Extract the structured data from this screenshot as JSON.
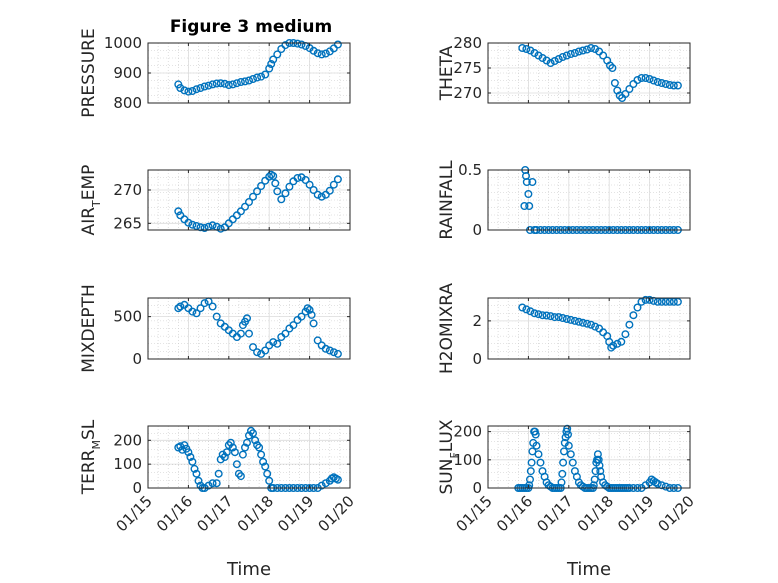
{
  "title": "Figure 3 medium",
  "chart_data": [
    {
      "type": "scatter",
      "ylabel": "PRESSURE",
      "ylim": [
        800,
        1000
      ],
      "yticks": [
        800,
        900,
        1000
      ],
      "yticklabels": [
        "800",
        "900",
        "1000"
      ],
      "x": [
        15.75,
        15.8,
        15.9,
        16.0,
        16.1,
        16.2,
        16.3,
        16.4,
        16.5,
        16.6,
        16.7,
        16.8,
        16.9,
        17.0,
        17.1,
        17.2,
        17.3,
        17.4,
        17.5,
        17.6,
        17.7,
        17.8,
        17.9,
        18.0,
        18.05,
        18.1,
        18.2,
        18.3,
        18.4,
        18.5,
        18.6,
        18.7,
        18.8,
        18.9,
        19.0,
        19.1,
        19.2,
        19.3,
        19.4,
        19.5,
        19.6,
        19.7
      ],
      "y": [
        862,
        850,
        842,
        838,
        840,
        846,
        850,
        855,
        858,
        862,
        865,
        866,
        864,
        860,
        862,
        866,
        870,
        872,
        875,
        880,
        885,
        888,
        895,
        915,
        930,
        945,
        962,
        980,
        993,
        1000,
        1000,
        998,
        995,
        990,
        983,
        974,
        966,
        962,
        965,
        972,
        982,
        995
      ]
    },
    {
      "type": "scatter",
      "ylabel": "THETA",
      "ylim": [
        268,
        280
      ],
      "yticks": [
        270,
        275,
        280
      ],
      "yticklabels": [
        "270",
        "275",
        "280"
      ],
      "x": [
        15.85,
        15.95,
        16.05,
        16.15,
        16.25,
        16.35,
        16.45,
        16.55,
        16.65,
        16.75,
        16.85,
        16.95,
        17.05,
        17.15,
        17.25,
        17.35,
        17.45,
        17.55,
        17.65,
        17.75,
        17.85,
        17.95,
        18.02,
        18.08,
        18.14,
        18.2,
        18.26,
        18.32,
        18.4,
        18.5,
        18.6,
        18.7,
        18.8,
        18.9,
        19.0,
        19.1,
        19.2,
        19.3,
        19.4,
        19.5,
        19.6,
        19.7
      ],
      "y": [
        279,
        278.8,
        278.5,
        278,
        277.5,
        277,
        276.5,
        276,
        276.4,
        276.8,
        277.2,
        277.5,
        277.8,
        278,
        278.3,
        278.5,
        278.7,
        279,
        278.8,
        278.3,
        277.5,
        276.5,
        275.5,
        275,
        272,
        270.5,
        269.5,
        269,
        269.8,
        270.8,
        271.8,
        272.6,
        273,
        273,
        272.8,
        272.5,
        272.2,
        272,
        271.8,
        271.6,
        271.5,
        271.5
      ]
    },
    {
      "type": "scatter",
      "ylabel": "AIR_TEMP",
      "ylim": [
        264,
        273
      ],
      "yticks": [
        265,
        270
      ],
      "yticklabels": [
        "265",
        "270"
      ],
      "x": [
        15.75,
        15.8,
        15.9,
        16.0,
        16.1,
        16.2,
        16.3,
        16.4,
        16.5,
        16.6,
        16.7,
        16.8,
        16.9,
        17.0,
        17.1,
        17.2,
        17.3,
        17.4,
        17.5,
        17.6,
        17.7,
        17.8,
        17.9,
        18.0,
        18.05,
        18.1,
        18.15,
        18.2,
        18.3,
        18.4,
        18.5,
        18.6,
        18.7,
        18.8,
        18.9,
        19.0,
        19.1,
        19.2,
        19.3,
        19.4,
        19.5,
        19.6,
        19.7
      ],
      "y": [
        266.8,
        266.2,
        265.6,
        265.1,
        264.8,
        264.6,
        264.4,
        264.3,
        264.5,
        264.7,
        264.5,
        264.2,
        264.4,
        265,
        265.6,
        266.2,
        266.8,
        267.5,
        268.2,
        269,
        269.8,
        270.6,
        271.4,
        272,
        272.3,
        272.1,
        271,
        269.8,
        268.6,
        269.5,
        270.5,
        271.3,
        271.8,
        271.9,
        271.5,
        270.8,
        270,
        269.3,
        269,
        269.3,
        269.9,
        270.8,
        271.6
      ]
    },
    {
      "type": "scatter",
      "ylabel": "RAINFALL",
      "ylim": [
        0,
        0.5
      ],
      "yticks": [
        0,
        0.5
      ],
      "yticklabels": [
        "0",
        "0.5"
      ],
      "x": [
        15.9,
        15.92,
        15.94,
        15.96,
        16.0,
        16.02,
        16.04,
        16.1,
        16.15,
        16.2,
        16.3,
        16.4,
        16.5,
        16.6,
        16.7,
        16.8,
        16.9,
        17.0,
        17.1,
        17.2,
        17.3,
        17.4,
        17.5,
        17.6,
        17.7,
        17.8,
        17.9,
        18.0,
        18.1,
        18.2,
        18.3,
        18.4,
        18.5,
        18.6,
        18.7,
        18.8,
        18.9,
        19.0,
        19.1,
        19.2,
        19.3,
        19.4,
        19.5,
        19.6,
        19.7
      ],
      "y": [
        0.2,
        0.5,
        0.45,
        0.4,
        0.3,
        0.2,
        0.0,
        0.4,
        0.0,
        0.0,
        0,
        0,
        0,
        0,
        0,
        0,
        0,
        0,
        0,
        0,
        0,
        0,
        0,
        0,
        0,
        0,
        0,
        0,
        0,
        0,
        0,
        0,
        0,
        0,
        0,
        0,
        0,
        0,
        0,
        0,
        0,
        0,
        0,
        0,
        0
      ]
    },
    {
      "type": "scatter",
      "ylabel": "MIXDEPTH",
      "ylim": [
        0,
        720
      ],
      "yticks": [
        0,
        500
      ],
      "yticklabels": [
        "0",
        "500"
      ],
      "x": [
        15.75,
        15.8,
        15.9,
        16.0,
        16.1,
        16.2,
        16.3,
        16.4,
        16.5,
        16.6,
        16.7,
        16.8,
        16.9,
        17.0,
        17.1,
        17.2,
        17.3,
        17.35,
        17.4,
        17.45,
        17.5,
        17.6,
        17.7,
        17.8,
        17.9,
        18.0,
        18.1,
        18.2,
        18.3,
        18.4,
        18.5,
        18.6,
        18.7,
        18.8,
        18.9,
        18.95,
        19.0,
        19.05,
        19.1,
        19.2,
        19.3,
        19.4,
        19.5,
        19.6,
        19.7
      ],
      "y": [
        600,
        620,
        640,
        600,
        560,
        540,
        600,
        660,
        680,
        620,
        500,
        420,
        380,
        340,
        300,
        260,
        300,
        400,
        440,
        480,
        300,
        140,
        80,
        60,
        100,
        160,
        200,
        180,
        260,
        300,
        360,
        400,
        460,
        500,
        560,
        600,
        580,
        520,
        420,
        220,
        160,
        120,
        100,
        80,
        60
      ]
    },
    {
      "type": "scatter",
      "ylabel": "H2OMIXRA",
      "ylim": [
        0,
        3.2
      ],
      "yticks": [
        0,
        2
      ],
      "yticklabels": [
        "0",
        "2"
      ],
      "x": [
        15.85,
        15.95,
        16.05,
        16.15,
        16.25,
        16.35,
        16.45,
        16.55,
        16.65,
        16.75,
        16.85,
        16.95,
        17.05,
        17.15,
        17.25,
        17.35,
        17.45,
        17.55,
        17.65,
        17.75,
        17.85,
        17.95,
        18.0,
        18.05,
        18.1,
        18.2,
        18.3,
        18.4,
        18.5,
        18.6,
        18.7,
        18.8,
        18.9,
        19.0,
        19.1,
        19.2,
        19.3,
        19.4,
        19.5,
        19.6,
        19.7
      ],
      "y": [
        2.7,
        2.6,
        2.5,
        2.4,
        2.35,
        2.3,
        2.28,
        2.25,
        2.2,
        2.2,
        2.15,
        2.1,
        2.05,
        2.0,
        1.95,
        1.9,
        1.85,
        1.8,
        1.7,
        1.6,
        1.4,
        1.2,
        0.9,
        0.6,
        0.7,
        0.8,
        0.9,
        1.3,
        1.8,
        2.3,
        2.7,
        3.0,
        3.1,
        3.1,
        3.05,
        3.0,
        3.0,
        3.0,
        3.0,
        3.0,
        3.0
      ]
    },
    {
      "type": "scatter",
      "ylabel": "TERR_MSL",
      "ylim": [
        0,
        260
      ],
      "yticks": [
        0,
        100,
        200
      ],
      "yticklabels": [
        "0",
        "100",
        "200"
      ],
      "x": [
        15.75,
        15.8,
        15.85,
        15.9,
        15.95,
        16.0,
        16.05,
        16.1,
        16.15,
        16.2,
        16.25,
        16.3,
        16.35,
        16.4,
        16.5,
        16.6,
        16.7,
        16.75,
        16.8,
        16.85,
        16.9,
        16.95,
        17.0,
        17.05,
        17.1,
        17.15,
        17.2,
        17.25,
        17.3,
        17.35,
        17.4,
        17.45,
        17.5,
        17.55,
        17.6,
        17.65,
        17.7,
        17.75,
        17.8,
        17.85,
        17.9,
        17.95,
        18.0,
        18.05,
        18.1,
        18.2,
        18.3,
        18.4,
        18.5,
        18.6,
        18.7,
        18.8,
        18.9,
        19.0,
        19.1,
        19.2,
        19.3,
        19.4,
        19.5,
        19.55,
        19.6,
        19.65,
        19.7
      ],
      "y": [
        170,
        175,
        160,
        180,
        165,
        150,
        130,
        110,
        80,
        60,
        30,
        10,
        0,
        0,
        10,
        20,
        20,
        60,
        120,
        140,
        130,
        150,
        180,
        190,
        170,
        150,
        100,
        60,
        50,
        140,
        170,
        190,
        220,
        240,
        230,
        200,
        180,
        170,
        140,
        110,
        90,
        60,
        30,
        0,
        0,
        0,
        0,
        0,
        0,
        0,
        0,
        0,
        0,
        0,
        0,
        0,
        10,
        20,
        30,
        40,
        45,
        40,
        35
      ]
    },
    {
      "type": "scatter",
      "ylabel": "SUN_FLUX",
      "ylim": [
        0,
        220
      ],
      "yticks": [
        0,
        100,
        200
      ],
      "yticklabels": [
        "0",
        "100",
        "200"
      ],
      "x": [
        15.75,
        15.8,
        15.85,
        15.9,
        15.95,
        16.0,
        16.02,
        16.04,
        16.06,
        16.08,
        16.1,
        16.12,
        16.14,
        16.16,
        16.18,
        16.2,
        16.25,
        16.3,
        16.35,
        16.4,
        16.45,
        16.5,
        16.55,
        16.6,
        16.65,
        16.7,
        16.75,
        16.8,
        16.82,
        16.84,
        16.86,
        16.88,
        16.9,
        16.92,
        16.94,
        16.96,
        16.98,
        17.0,
        17.05,
        17.1,
        17.15,
        17.2,
        17.25,
        17.3,
        17.35,
        17.4,
        17.45,
        17.5,
        17.55,
        17.6,
        17.62,
        17.64,
        17.66,
        17.68,
        17.7,
        17.72,
        17.74,
        17.76,
        17.78,
        17.8,
        17.85,
        17.9,
        17.95,
        18.0,
        18.05,
        18.1,
        18.15,
        18.2,
        18.25,
        18.3,
        18.35,
        18.4,
        18.45,
        18.5,
        18.6,
        18.7,
        18.8,
        18.9,
        19.0,
        19.05,
        19.1,
        19.15,
        19.2,
        19.3,
        19.4,
        19.5,
        19.6,
        19.7
      ],
      "y": [
        0,
        0,
        0,
        0,
        0,
        0,
        10,
        30,
        60,
        90,
        130,
        160,
        200,
        200,
        190,
        150,
        120,
        90,
        60,
        40,
        20,
        10,
        5,
        0,
        0,
        0,
        0,
        0,
        20,
        50,
        90,
        130,
        160,
        180,
        200,
        210,
        190,
        150,
        120,
        90,
        60,
        40,
        20,
        10,
        5,
        0,
        0,
        0,
        0,
        0,
        10,
        30,
        60,
        90,
        100,
        120,
        100,
        80,
        60,
        40,
        20,
        10,
        5,
        0,
        0,
        0,
        0,
        0,
        0,
        0,
        0,
        0,
        0,
        0,
        0,
        0,
        0,
        10,
        20,
        30,
        25,
        20,
        15,
        10,
        5,
        0,
        0,
        0
      ]
    }
  ],
  "xaxis": {
    "label": "Time",
    "xlim": [
      15,
      20
    ],
    "ticks": [
      15,
      16,
      17,
      18,
      19,
      20
    ],
    "ticklabels": [
      "01/15",
      "01/16",
      "01/17",
      "01/18",
      "01/19",
      "01/20"
    ]
  },
  "ylabels": [
    {
      "main": "PRESSURE",
      "sub": "",
      "tail": ""
    },
    {
      "main": "THETA",
      "sub": "",
      "tail": ""
    },
    {
      "main": "AIR",
      "sub": "T",
      "tail": "EMP"
    },
    {
      "main": "RAINFALL",
      "sub": "",
      "tail": ""
    },
    {
      "main": "MIXDEPTH",
      "sub": "",
      "tail": ""
    },
    {
      "main": "H2OMIXRA",
      "sub": "",
      "tail": ""
    },
    {
      "main": "TERR",
      "sub": "M",
      "tail": "SL"
    },
    {
      "main": "SUN",
      "sub": "F",
      "tail": "LUX"
    }
  ],
  "colors": {
    "marker": "#0072BD",
    "axis": "#262626",
    "grid": "#dcdcdc"
  }
}
